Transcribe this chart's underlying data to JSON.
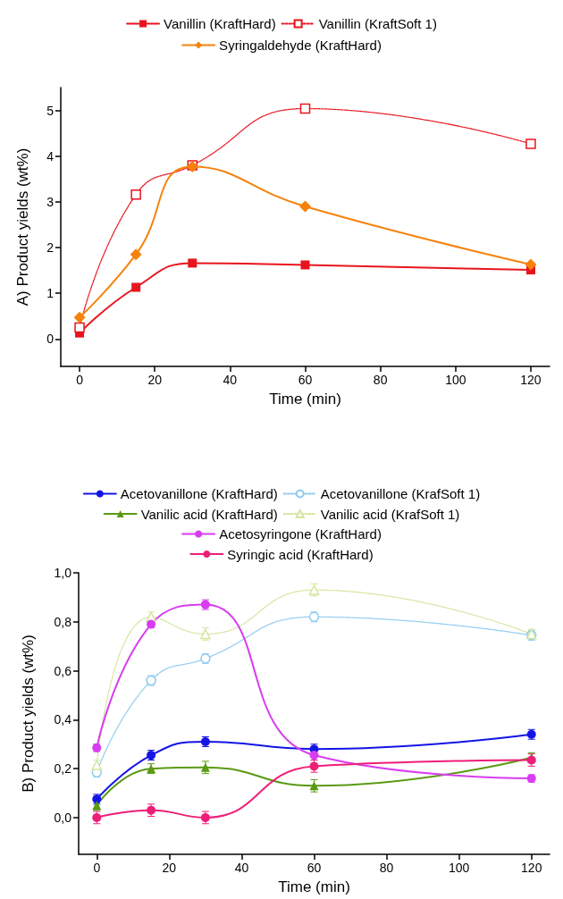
{
  "chart_data": [
    {
      "type": "line",
      "xlabel": "Time (min)",
      "ylabel": "A) Product yields (wt%)",
      "xlim": [
        -5,
        125
      ],
      "xticks": [
        0,
        20,
        40,
        60,
        80,
        100,
        120
      ],
      "ylim": [
        -0.6,
        5.5
      ],
      "yticks": [
        0,
        1,
        2,
        3,
        4,
        5
      ],
      "legend": "top",
      "grid": false,
      "x": [
        0,
        15,
        30,
        60,
        120
      ],
      "series": [
        {
          "name": "Vanillin (KraftHard)",
          "color": "#e8141e",
          "marker": "square",
          "line_style": "solid",
          "values": [
            0.13,
            1.13,
            1.66,
            1.62,
            1.51
          ]
        },
        {
          "name": "Vanillin (KraftSoft 1)",
          "color": "#e8141e",
          "marker": "square",
          "line_style": "dotted",
          "values": [
            0.25,
            3.16,
            3.8,
            5.04,
            4.27
          ]
        },
        {
          "name": "Syringaldehyde (KraftHard)",
          "color": "#f5820a",
          "marker": "diamond",
          "line_style": "solid",
          "values": [
            0.47,
            1.85,
            3.77,
            2.9,
            1.63
          ]
        }
      ]
    },
    {
      "type": "line",
      "xlabel": "Time (min)",
      "ylabel": "B) Product yields (wt%)",
      "xlim": [
        -5,
        125
      ],
      "xticks": [
        0,
        20,
        40,
        60,
        80,
        100,
        120
      ],
      "ylim": [
        -0.15,
        1.0
      ],
      "yticks": [
        {
          "value": 0,
          "label": "0,0"
        },
        {
          "value": 0.2,
          "label": "0,2"
        },
        {
          "value": 0.4,
          "label": "0,4"
        },
        {
          "value": 0.6,
          "label": "0,6"
        },
        {
          "value": 0.8,
          "label": "0,8"
        },
        {
          "value": 1.0,
          "label": "1,0"
        }
      ],
      "legend": "top",
      "grid": false,
      "x": [
        0,
        15,
        30,
        60,
        120
      ],
      "series": [
        {
          "name": "Acetovanillone (KraftHard)",
          "color": "#1414e6",
          "marker": "circle",
          "line_style": "solid",
          "values": [
            0.075,
            0.255,
            0.31,
            0.28,
            0.34
          ],
          "errors": [
            0.02,
            0.02,
            0.02,
            0.02,
            0.02
          ]
        },
        {
          "name": "Acetovanillone (KrafSoft 1)",
          "color": "#8ecbf0",
          "marker": "circle",
          "line_style": "dotted",
          "values": [
            0.185,
            0.56,
            0.65,
            0.82,
            0.745
          ],
          "errors": [
            0.02,
            0.02,
            0.02,
            0.02,
            0.02
          ]
        },
        {
          "name": "Vanilic acid (KraftHard)",
          "color": "#5a9a14",
          "marker": "triangle",
          "line_style": "solid",
          "values": [
            0.05,
            0.2,
            0.205,
            0.13,
            0.245
          ],
          "errors": [
            0.02,
            0.02,
            0.025,
            0.025,
            0.02
          ]
        },
        {
          "name": "Vanilic acid (KrafSoft 1)",
          "color": "#d4e6a0",
          "marker": "triangle",
          "line_style": "dotted",
          "values": [
            0.215,
            0.82,
            0.75,
            0.93,
            0.75
          ],
          "errors": [
            0.02,
            0.02,
            0.025,
            0.025,
            0.02
          ]
        },
        {
          "name": "Acetosyringone (KraftHard)",
          "color": "#d83cf0",
          "marker": "circle",
          "line_style": "solid",
          "values": [
            0.285,
            0.79,
            0.87,
            0.255,
            0.16
          ],
          "errors": [
            0.015,
            0.015,
            0.02,
            0.02,
            0.015
          ]
        },
        {
          "name": "Syringic acid (KraftHard)",
          "color": "#ee1e78",
          "marker": "circle",
          "line_style": "solid",
          "values": [
            0.0,
            0.03,
            0.0,
            0.21,
            0.235
          ],
          "errors": [
            0.025,
            0.025,
            0.025,
            0.025,
            0.025
          ]
        }
      ]
    }
  ]
}
